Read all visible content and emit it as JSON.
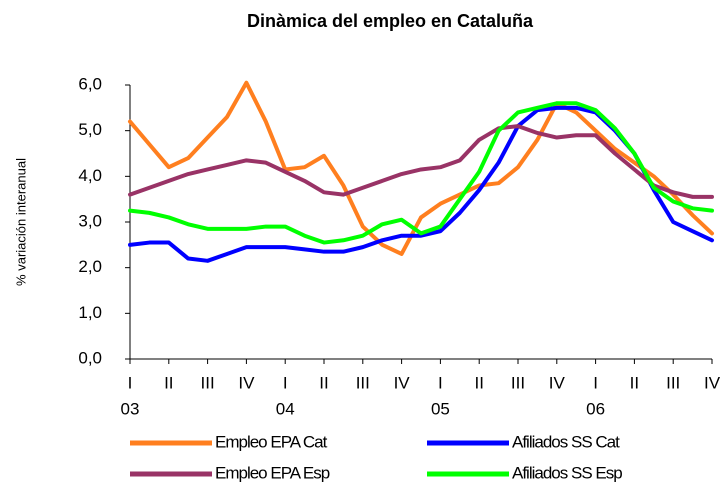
{
  "chart_data": {
    "type": "line",
    "title": "Dinàmica del empleo en Cataluña",
    "y_label": "% variación interanual",
    "x": [
      0,
      0.5,
      1,
      1.5,
      2,
      2.5,
      3,
      3.5,
      4,
      4.5,
      5,
      5.5,
      6,
      6.5,
      7,
      7.5,
      8,
      8.5,
      9,
      9.5,
      10,
      10.5,
      11,
      11.5,
      12,
      12.5,
      13,
      13.5,
      14,
      14.5,
      15
    ],
    "xlim": [
      0,
      15
    ],
    "xticks": [
      {
        "value": 0,
        "label": "I"
      },
      {
        "value": 1,
        "label": "II"
      },
      {
        "value": 2,
        "label": "III"
      },
      {
        "value": 3,
        "label": "IV"
      },
      {
        "value": 4,
        "label": "I"
      },
      {
        "value": 5,
        "label": "II"
      },
      {
        "value": 6,
        "label": "III"
      },
      {
        "value": 7,
        "label": "IV"
      },
      {
        "value": 8,
        "label": "I"
      },
      {
        "value": 9,
        "label": "II"
      },
      {
        "value": 10,
        "label": "III"
      },
      {
        "value": 11,
        "label": "IV"
      },
      {
        "value": 12,
        "label": "I"
      },
      {
        "value": 13,
        "label": "II"
      },
      {
        "value": 14,
        "label": "III"
      },
      {
        "value": 15,
        "label": "IV"
      }
    ],
    "year_ticks": [
      {
        "value": 0,
        "label": "03"
      },
      {
        "value": 4,
        "label": "04"
      },
      {
        "value": 8,
        "label": "05"
      },
      {
        "value": 12,
        "label": "06"
      }
    ],
    "ylim": [
      0,
      6
    ],
    "yticks": [
      {
        "value": 0,
        "label": "0,0"
      },
      {
        "value": 1,
        "label": "1,0"
      },
      {
        "value": 2,
        "label": "2,0"
      },
      {
        "value": 3,
        "label": "3,0"
      },
      {
        "value": 4,
        "label": "4,0"
      },
      {
        "value": 5,
        "label": "5,0"
      },
      {
        "value": 6,
        "label": "6,0"
      }
    ],
    "grid": false,
    "series": [
      {
        "name": "Empleo EPA Cat",
        "color": "#ff7f1f",
        "values": [
          5.2,
          4.7,
          4.2,
          4.4,
          4.85,
          5.3,
          6.05,
          5.2,
          4.15,
          4.2,
          4.45,
          3.8,
          2.9,
          2.5,
          2.3,
          3.1,
          3.4,
          3.6,
          3.8,
          3.85,
          4.2,
          4.8,
          5.6,
          5.4,
          5.0,
          4.6,
          4.3,
          4.0,
          3.6,
          3.15,
          2.75
        ]
      },
      {
        "name": "Afiliados SS Cat",
        "color": "#0000ff",
        "values": [
          2.5,
          2.55,
          2.55,
          2.2,
          2.15,
          2.3,
          2.45,
          2.45,
          2.45,
          2.4,
          2.35,
          2.35,
          2.45,
          2.6,
          2.7,
          2.7,
          2.8,
          3.2,
          3.7,
          4.3,
          5.1,
          5.45,
          5.5,
          5.5,
          5.4,
          5.0,
          4.5,
          3.7,
          3.0,
          2.8,
          2.6
        ]
      },
      {
        "name": "Empleo EPA Esp",
        "color": "#993366",
        "values": [
          3.6,
          3.75,
          3.9,
          4.05,
          4.15,
          4.25,
          4.35,
          4.3,
          4.1,
          3.9,
          3.65,
          3.6,
          3.75,
          3.9,
          4.05,
          4.15,
          4.2,
          4.35,
          4.8,
          5.05,
          5.1,
          4.95,
          4.85,
          4.9,
          4.9,
          4.5,
          4.15,
          3.8,
          3.65,
          3.55,
          3.55
        ]
      },
      {
        "name": "Afiliados SS Esp",
        "color": "#00ff00",
        "values": [
          3.25,
          3.2,
          3.1,
          2.95,
          2.85,
          2.85,
          2.85,
          2.9,
          2.9,
          2.7,
          2.55,
          2.6,
          2.7,
          2.95,
          3.05,
          2.75,
          2.9,
          3.5,
          4.1,
          5.0,
          5.4,
          5.5,
          5.6,
          5.6,
          5.45,
          5.05,
          4.5,
          3.75,
          3.45,
          3.3,
          3.25
        ]
      }
    ]
  }
}
